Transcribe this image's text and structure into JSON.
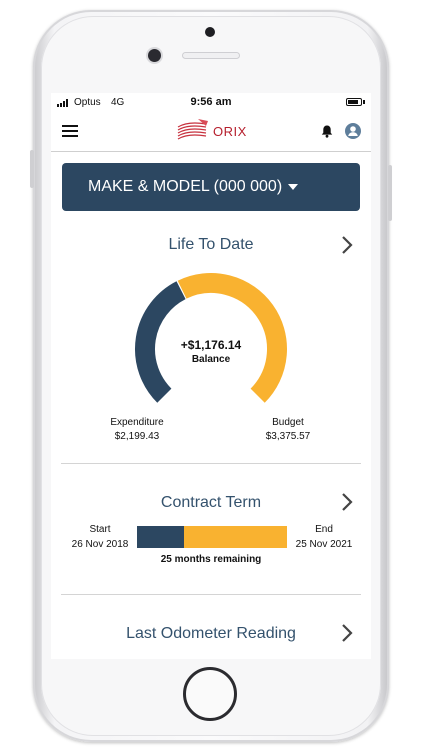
{
  "status_bar": {
    "carrier": "Optus",
    "network": "4G",
    "time": "9:56 am"
  },
  "app_bar": {
    "brand": "ORIX",
    "menu_icon": "hamburger-menu-icon",
    "notification_icon": "bell-icon",
    "profile_icon": "user-avatar-icon"
  },
  "vehicle_selector": {
    "label": "MAKE & MODEL  (000 000)",
    "icon": "caret-down-icon"
  },
  "life_to_date": {
    "title": "Life To Date",
    "balance_amount": "+$1,176.14",
    "balance_label": "Balance",
    "expenditure_label": "Expenditure",
    "expenditure_value": "$2,199.43",
    "budget_label": "Budget",
    "budget_value": "$3,375.57",
    "expenditure_fraction": 0.4,
    "colors": {
      "expenditure": "#2c4761",
      "budget": "#f9b230"
    }
  },
  "contract_term": {
    "title": "Contract Term",
    "start_label": "Start",
    "start_date": "26 Nov 2018",
    "end_label": "End",
    "end_date": "25 Nov 2021",
    "remaining_text": "25 months remaining",
    "elapsed_fraction": 0.31
  },
  "odometer": {
    "title": "Last Odometer Reading"
  },
  "colors": {
    "primary": "#2c4761",
    "accent": "#f9b230",
    "brand_red": "#b6202e",
    "title_text": "#34526d"
  }
}
